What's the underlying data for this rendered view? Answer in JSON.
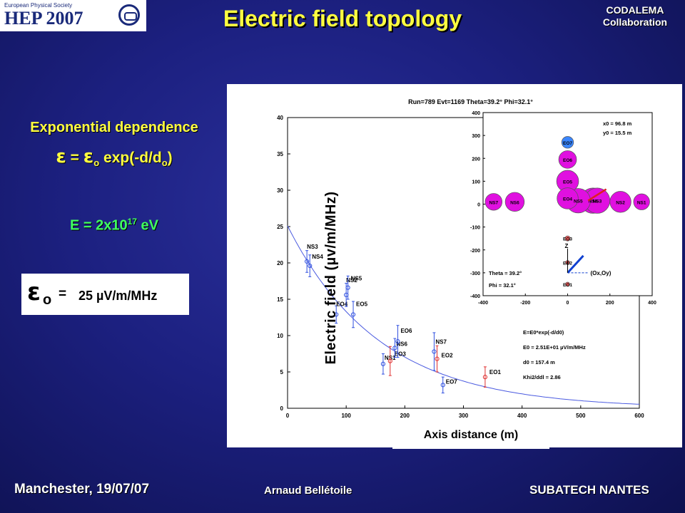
{
  "logo": {
    "line1": "European Physical Society",
    "line2": "HEP 2007"
  },
  "header": {
    "title": "Electric field topology",
    "collab1": "CODALEMA",
    "collab2": "Collaboration"
  },
  "left": {
    "subtitle": "Exponential dependence",
    "formula_eq": "= ",
    "formula_exp": " exp(-d/d",
    "formula_close": ")",
    "formula_sub": "o",
    "energy_main": "E = 2x10",
    "energy_exp": "17",
    "energy_unit": " eV",
    "e0_sub": "o",
    "e0_eq": "=",
    "e0_value": "25 µV/m/MHz"
  },
  "plot": {
    "ylabel": "Electric field (µv/m/MHz)",
    "xlabel": "Axis distance (m)",
    "header": "Run=789  Evt=1169  Theta=39.2°  Phi=32.1°",
    "fit_lines": [
      "E=E0*exp(-d/d0)",
      "E0 = 2.51E+01 µV/m/MHz",
      "d0 = 157.4 m",
      "Khi2/ddl = 2.86"
    ],
    "inset_text": {
      "x0": "x0 = 96.8 m",
      "y0": "y0 = 15.5 m",
      "theta": "Theta = 39.2°",
      "phi": "Phi = 32.1°",
      "z": "Z",
      "oxoy": "(Ox,Oy)"
    }
  },
  "footer": {
    "left": "Manchester, 19/07/07",
    "center": "Arnaud Bellétoile",
    "right": "SUBATECH NANTES"
  },
  "colors": {
    "title": "#ffff40",
    "energy": "#40ff60",
    "background": "#1c2080",
    "fit": "#4a5ae0",
    "red_points": "#e03030"
  },
  "chart_data": [
    {
      "type": "scatter",
      "title": "Run=789  Evt=1169  Theta=39.2°  Phi=32.1°",
      "xlabel": "Axis distance (m)",
      "ylabel": "Electric field (µv/m/MHz)",
      "xlim": [
        0,
        600
      ],
      "ylim": [
        0,
        40
      ],
      "xticks": [
        0,
        100,
        200,
        300,
        400,
        500,
        600
      ],
      "yticks": [
        0,
        5,
        10,
        15,
        20,
        25,
        30,
        35,
        40
      ],
      "fit": {
        "formula": "E=E0*exp(-d/d0)",
        "E0": 25.1,
        "d0": 157.4,
        "chi2_ndf": 2.86
      },
      "points": [
        {
          "label": "NS3",
          "x": 33,
          "y": 20.2,
          "err": 1.5,
          "color": "#3050e0"
        },
        {
          "label": "NS4",
          "x": 38,
          "y": 19.6,
          "err": 1.5,
          "color": "#3050e0"
        },
        {
          "label": "EO4",
          "x": 83,
          "y": 12.9,
          "err": 1.2,
          "color": "#3050e0"
        },
        {
          "label": "NS2",
          "x": 100,
          "y": 15.6,
          "err": 1.6,
          "color": "#3050e0"
        },
        {
          "label": "NS5",
          "x": 103,
          "y": 16.6,
          "err": 1.6,
          "color": "#3050e0"
        },
        {
          "label": "EO5",
          "x": 112,
          "y": 12.9,
          "err": 1.8,
          "color": "#3050e0"
        },
        {
          "label": "NS1",
          "x": 163,
          "y": 6.1,
          "err": 1.4,
          "color": "#3050e0"
        },
        {
          "label": "EO3",
          "x": 175,
          "y": 6.5,
          "err": 2.0,
          "color": "#e03030"
        },
        {
          "label": "NS6",
          "x": 183,
          "y": 8.3,
          "err": 1.3,
          "color": "#3050e0"
        },
        {
          "label": "EO6",
          "x": 188,
          "y": 9.2,
          "err": 2.2,
          "color": "#3050e0"
        },
        {
          "label": "NS7",
          "x": 250,
          "y": 7.8,
          "err": 2.6,
          "color": "#3050e0"
        },
        {
          "label": "EO2",
          "x": 255,
          "y": 6.8,
          "err": 1.8,
          "color": "#e03030"
        },
        {
          "label": "EO7",
          "x": 265,
          "y": 3.2,
          "err": 1.1,
          "color": "#3050e0"
        },
        {
          "label": "EO1",
          "x": 337,
          "y": 4.3,
          "err": 1.4,
          "color": "#e03030"
        }
      ]
    },
    {
      "type": "scatter",
      "title": "",
      "xlim": [
        -400,
        400
      ],
      "ylim": [
        -400,
        400
      ],
      "xticks": [
        -400,
        -200,
        0,
        200,
        400
      ],
      "yticks": [
        -400,
        -300,
        -200,
        -100,
        0,
        100,
        200,
        300,
        400
      ],
      "core": {
        "x0": 96.8,
        "y0": 15.5
      },
      "direction": {
        "theta": 39.2,
        "phi": 32.1
      },
      "antennas": [
        {
          "label": "EO7",
          "x": 0,
          "y": 270,
          "r": 28,
          "color": "#3a86ff"
        },
        {
          "label": "EO6",
          "x": 0,
          "y": 195,
          "r": 42,
          "color": "#e010e0"
        },
        {
          "label": "EO5",
          "x": 0,
          "y": 100,
          "r": 52,
          "color": "#e010e0"
        },
        {
          "label": "EO4",
          "x": 0,
          "y": 25,
          "r": 50,
          "color": "#e010e0"
        },
        {
          "label": "NS7",
          "x": -350,
          "y": 10,
          "r": 40,
          "color": "#e010e0"
        },
        {
          "label": "NS6",
          "x": -250,
          "y": 10,
          "r": 45,
          "color": "#e010e0"
        },
        {
          "label": "NS5",
          "x": 50,
          "y": 15,
          "r": 58,
          "color": "#e010e0"
        },
        {
          "label": "NS4",
          "x": 120,
          "y": 15,
          "r": 60,
          "color": "#e010e0"
        },
        {
          "label": "NS3",
          "x": 140,
          "y": 15,
          "r": 60,
          "color": "#e010e0"
        },
        {
          "label": "NS2",
          "x": 250,
          "y": 10,
          "r": 50,
          "color": "#e010e0"
        },
        {
          "label": "NS1",
          "x": 350,
          "y": 10,
          "r": 38,
          "color": "#e010e0"
        },
        {
          "label": "EO3",
          "x": 0,
          "y": -150,
          "r": 12,
          "color": "#ff6060"
        },
        {
          "label": "EO2",
          "x": 0,
          "y": -255,
          "r": 10,
          "color": "#ff6060"
        },
        {
          "label": "EO1",
          "x": 0,
          "y": -350,
          "r": 10,
          "color": "#ff6060"
        }
      ]
    }
  ]
}
